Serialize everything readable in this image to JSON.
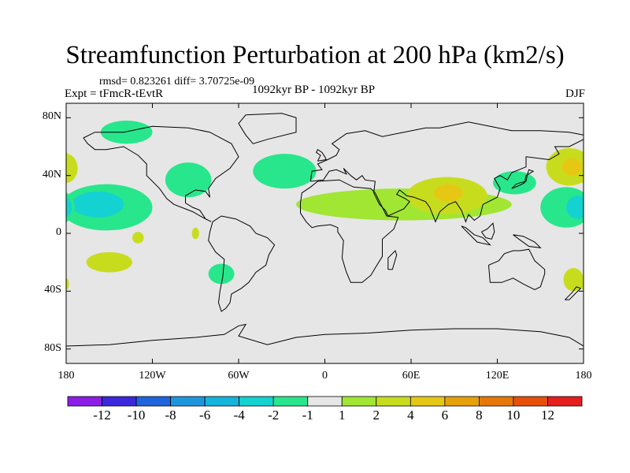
{
  "title": "Streamfunction Perturbation at 200 hPa (km2/s)",
  "stats": "rmsd= 0.823261 diff= 3.70725e-09",
  "experiment": "Expt = tFmcR-tEvtR",
  "period": "1092kyr BP - 1092kyr BP",
  "season": "DJF",
  "colors": {
    "background": "#e6e6e6",
    "bar": [
      "#8c1ee6",
      "#3c28dc",
      "#1e64dc",
      "#1e96dc",
      "#14b4dc",
      "#14d2d2",
      "#28e68c",
      "#e6e6e6",
      "#a0e632",
      "#c8dc1e",
      "#e6c814",
      "#e6a00a",
      "#e6780a",
      "#e6500a",
      "#e61e1e"
    ]
  },
  "chart_data": {
    "type": "map-contour",
    "projection": "cylindrical-equidistant",
    "xlim": [
      -180,
      180
    ],
    "ylim": [
      -90,
      90
    ],
    "lon_ticks": [
      {
        "value": -180,
        "label": "180"
      },
      {
        "value": -120,
        "label": "120W"
      },
      {
        "value": -60,
        "label": "60W"
      },
      {
        "value": 0,
        "label": "0"
      },
      {
        "value": 60,
        "label": "60E"
      },
      {
        "value": 120,
        "label": "120E"
      },
      {
        "value": 180,
        "label": "180"
      }
    ],
    "lat_ticks": [
      {
        "value": 80,
        "label": "80N"
      },
      {
        "value": 40,
        "label": "40N"
      },
      {
        "value": 0,
        "label": "0"
      },
      {
        "value": -40,
        "label": "40S"
      },
      {
        "value": -80,
        "label": "80S"
      }
    ],
    "colorbar_levels": [
      -12,
      -10,
      -8,
      -6,
      -4,
      -2,
      -1,
      1,
      2,
      4,
      6,
      8,
      10,
      12
    ],
    "anomalies": [
      {
        "name": "north-pacific-negative",
        "lon": -152,
        "lat": 18,
        "rx": 32,
        "ry": 16,
        "level": -2
      },
      {
        "name": "north-pacific-core",
        "lon": -158,
        "lat": 20,
        "rx": 18,
        "ry": 9,
        "level": -4
      },
      {
        "name": "alaska-positive",
        "lon": -180,
        "lat": 45,
        "rx": 8,
        "ry": 10,
        "level": 2
      },
      {
        "name": "alaska-core",
        "lon": -180,
        "lat": 45,
        "rx": 4,
        "ry": 5,
        "level": 4
      },
      {
        "name": "north-canada-negative",
        "lon": -138,
        "lat": 70,
        "rx": 18,
        "ry": 8,
        "level": -2
      },
      {
        "name": "north-america-negative",
        "lon": -95,
        "lat": 37,
        "rx": 16,
        "ry": 12,
        "level": -2
      },
      {
        "name": "north-atlantic-negative",
        "lon": -28,
        "lat": 43,
        "rx": 22,
        "ry": 12,
        "level": -2
      },
      {
        "name": "eurasia-positive-band",
        "lon": 55,
        "lat": 20,
        "rx": 75,
        "ry": 11,
        "level": 1
      },
      {
        "name": "asia-positive",
        "lon": 85,
        "lat": 26,
        "rx": 28,
        "ry": 13,
        "level": 2
      },
      {
        "name": "asia-core",
        "lon": 86,
        "lat": 28,
        "rx": 10,
        "ry": 6,
        "level": 4
      },
      {
        "name": "west-pacific-negative",
        "lon": 132,
        "lat": 35,
        "rx": 15,
        "ry": 8,
        "level": -2
      },
      {
        "name": "east-asia-positive",
        "lon": 170,
        "lat": 46,
        "rx": 16,
        "ry": 13,
        "level": 2
      },
      {
        "name": "east-asia-core",
        "lon": 172,
        "lat": 46,
        "rx": 7,
        "ry": 6,
        "level": 4
      },
      {
        "name": "central-pacific-negative",
        "lon": 168,
        "lat": 18,
        "rx": 18,
        "ry": 14,
        "level": -2
      },
      {
        "name": "central-pacific-core",
        "lon": 176,
        "lat": 18,
        "rx": 8,
        "ry": 8,
        "level": -4
      },
      {
        "name": "tropical-pacific-positive-a",
        "lon": -130,
        "lat": -3,
        "rx": 4,
        "ry": 4,
        "level": 2
      },
      {
        "name": "tropical-pacific-positive-b",
        "lon": -150,
        "lat": -20,
        "rx": 16,
        "ry": 7,
        "level": 2
      },
      {
        "name": "central-america-positive",
        "lon": -90,
        "lat": 0,
        "rx": 2.5,
        "ry": 4,
        "level": 2
      },
      {
        "name": "south-america-negative",
        "lon": -72,
        "lat": -28,
        "rx": 9,
        "ry": 7,
        "level": -2
      },
      {
        "name": "south-pacific-positive",
        "lon": 173,
        "lat": -32,
        "rx": 7,
        "ry": 8,
        "level": 2
      },
      {
        "name": "south-pacific-west-positive",
        "lon": -180,
        "lat": -35,
        "rx": 2,
        "ry": 4,
        "level": 2
      }
    ]
  }
}
